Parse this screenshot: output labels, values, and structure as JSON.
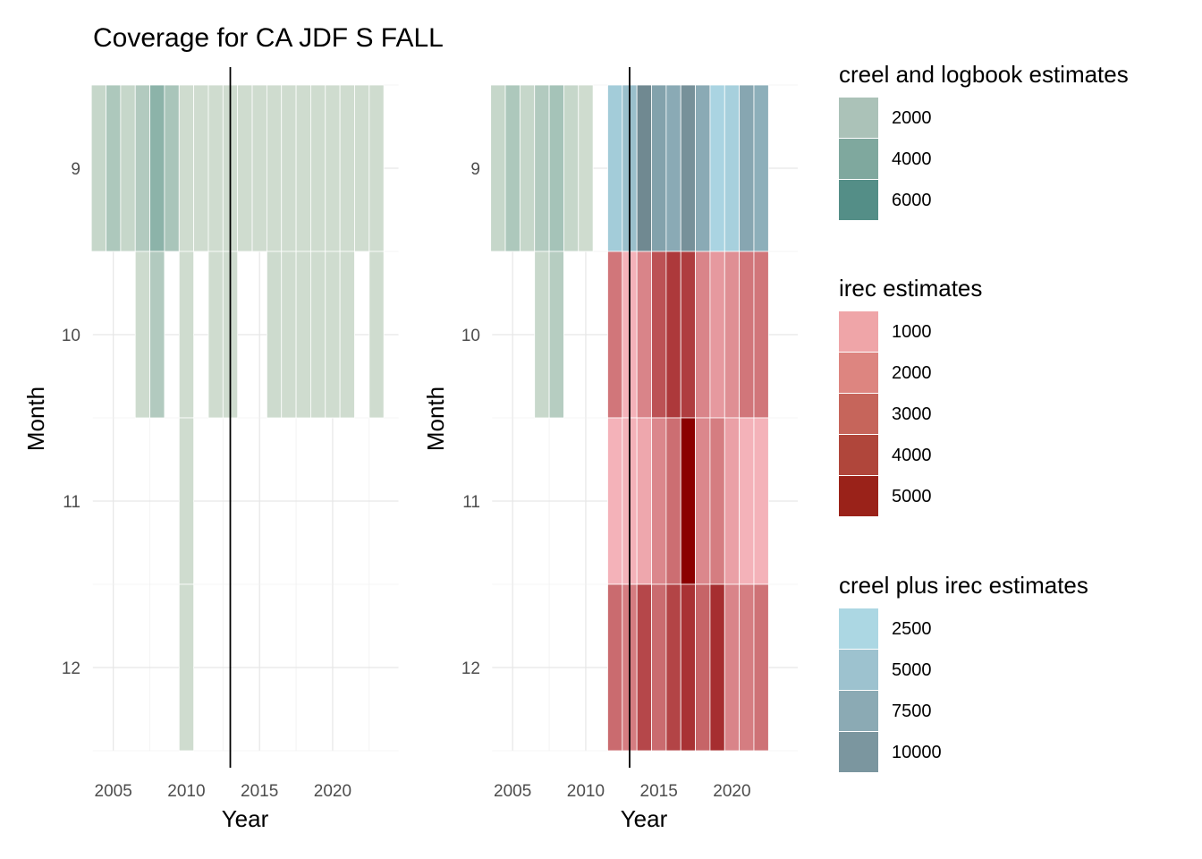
{
  "title": "Coverage for CA JDF S FALL",
  "chart_data": [
    {
      "type": "heatmap",
      "panel": "left",
      "xlabel": "Year",
      "ylabel": "Month",
      "xticks": [
        2005,
        2010,
        2015,
        2020
      ],
      "yticks": [
        9,
        10,
        11,
        12
      ],
      "xlim": [
        2003.6,
        2024.5
      ],
      "ylim": [
        8.5,
        12.5
      ],
      "vline_x": 2013,
      "grid": true,
      "cells": [
        {
          "year": 2004,
          "month": 9,
          "source": "creel and logbook estimates",
          "value": 1000
        },
        {
          "year": 2005,
          "month": 9,
          "source": "creel and logbook estimates",
          "value": 2200
        },
        {
          "year": 2006,
          "month": 9,
          "source": "creel and logbook estimates",
          "value": 1000
        },
        {
          "year": 2007,
          "month": 9,
          "source": "creel and logbook estimates",
          "value": 2000
        },
        {
          "year": 2008,
          "month": 9,
          "source": "creel and logbook estimates",
          "value": 3800
        },
        {
          "year": 2009,
          "month": 9,
          "source": "creel and logbook estimates",
          "value": 2400
        },
        {
          "year": 2010,
          "month": 9,
          "source": "creel and logbook estimates",
          "value": 600
        },
        {
          "year": 2011,
          "month": 9,
          "source": "creel and logbook estimates",
          "value": 600
        },
        {
          "year": 2012,
          "month": 9,
          "source": "creel and logbook estimates",
          "value": 600
        },
        {
          "year": 2013,
          "month": 9,
          "source": "creel and logbook estimates",
          "value": 600
        },
        {
          "year": 2014,
          "month": 9,
          "source": "creel and logbook estimates",
          "value": 600
        },
        {
          "year": 2015,
          "month": 9,
          "source": "creel and logbook estimates",
          "value": 600
        },
        {
          "year": 2016,
          "month": 9,
          "source": "creel and logbook estimates",
          "value": 600
        },
        {
          "year": 2017,
          "month": 9,
          "source": "creel and logbook estimates",
          "value": 600
        },
        {
          "year": 2018,
          "month": 9,
          "source": "creel and logbook estimates",
          "value": 600
        },
        {
          "year": 2019,
          "month": 9,
          "source": "creel and logbook estimates",
          "value": 600
        },
        {
          "year": 2020,
          "month": 9,
          "source": "creel and logbook estimates",
          "value": 600
        },
        {
          "year": 2021,
          "month": 9,
          "source": "creel and logbook estimates",
          "value": 600
        },
        {
          "year": 2022,
          "month": 9,
          "source": "creel and logbook estimates",
          "value": 600
        },
        {
          "year": 2023,
          "month": 9,
          "source": "creel and logbook estimates",
          "value": 600
        },
        {
          "year": 2007,
          "month": 10,
          "source": "creel and logbook estimates",
          "value": 700
        },
        {
          "year": 2008,
          "month": 10,
          "source": "creel and logbook estimates",
          "value": 2000
        },
        {
          "year": 2010,
          "month": 10,
          "source": "creel and logbook estimates",
          "value": 600
        },
        {
          "year": 2012,
          "month": 10,
          "source": "creel and logbook estimates",
          "value": 600
        },
        {
          "year": 2013,
          "month": 10,
          "source": "creel and logbook estimates",
          "value": 600
        },
        {
          "year": 2016,
          "month": 10,
          "source": "creel and logbook estimates",
          "value": 700
        },
        {
          "year": 2017,
          "month": 10,
          "source": "creel and logbook estimates",
          "value": 600
        },
        {
          "year": 2018,
          "month": 10,
          "source": "creel and logbook estimates",
          "value": 600
        },
        {
          "year": 2019,
          "month": 10,
          "source": "creel and logbook estimates",
          "value": 600
        },
        {
          "year": 2020,
          "month": 10,
          "source": "creel and logbook estimates",
          "value": 600
        },
        {
          "year": 2021,
          "month": 10,
          "source": "creel and logbook estimates",
          "value": 600
        },
        {
          "year": 2023,
          "month": 10,
          "source": "creel and logbook estimates",
          "value": 600
        },
        {
          "year": 2010,
          "month": 11,
          "source": "creel and logbook estimates",
          "value": 600
        },
        {
          "year": 2010,
          "month": 12,
          "source": "creel and logbook estimates",
          "value": 600
        }
      ]
    },
    {
      "type": "heatmap",
      "panel": "right",
      "xlabel": "Year",
      "ylabel": "Month",
      "xticks": [
        2005,
        2010,
        2015,
        2020
      ],
      "yticks": [
        9,
        10,
        11,
        12
      ],
      "xlim": [
        2003.6,
        2024.5
      ],
      "ylim": [
        8.5,
        12.5
      ],
      "vline_x": 2013,
      "grid": true,
      "cells": [
        {
          "year": 2004,
          "month": 9,
          "source": "creel and logbook estimates",
          "value": 1000
        },
        {
          "year": 2005,
          "month": 9,
          "source": "creel and logbook estimates",
          "value": 2200
        },
        {
          "year": 2006,
          "month": 9,
          "source": "creel and logbook estimates",
          "value": 1000
        },
        {
          "year": 2007,
          "month": 9,
          "source": "creel and logbook estimates",
          "value": 2000
        },
        {
          "year": 2008,
          "month": 9,
          "source": "creel and logbook estimates",
          "value": 2600
        },
        {
          "year": 2009,
          "month": 9,
          "source": "creel and logbook estimates",
          "value": 1000
        },
        {
          "year": 2010,
          "month": 9,
          "source": "creel and logbook estimates",
          "value": 600
        },
        {
          "year": 2012,
          "month": 9,
          "source": "creel plus irec estimates",
          "value": 3500
        },
        {
          "year": 2013,
          "month": 9,
          "source": "creel plus irec estimates",
          "value": 5000
        },
        {
          "year": 2014,
          "month": 9,
          "source": "creel plus irec estimates",
          "value": 11500
        },
        {
          "year": 2015,
          "month": 9,
          "source": "creel plus irec estimates",
          "value": 8500
        },
        {
          "year": 2016,
          "month": 9,
          "source": "creel plus irec estimates",
          "value": 7500
        },
        {
          "year": 2017,
          "month": 9,
          "source": "creel plus irec estimates",
          "value": 10500
        },
        {
          "year": 2018,
          "month": 9,
          "source": "creel plus irec estimates",
          "value": 7500
        },
        {
          "year": 2019,
          "month": 9,
          "source": "creel plus irec estimates",
          "value": 2500
        },
        {
          "year": 2020,
          "month": 9,
          "source": "creel plus irec estimates",
          "value": 3000
        },
        {
          "year": 2021,
          "month": 9,
          "source": "creel plus irec estimates",
          "value": 8000
        },
        {
          "year": 2022,
          "month": 9,
          "source": "creel plus irec estimates",
          "value": 7000
        },
        {
          "year": 2007,
          "month": 10,
          "source": "creel and logbook estimates",
          "value": 900
        },
        {
          "year": 2008,
          "month": 10,
          "source": "creel and logbook estimates",
          "value": 1800
        },
        {
          "year": 2012,
          "month": 10,
          "source": "irec estimates",
          "value": 2200
        },
        {
          "year": 2013,
          "month": 10,
          "source": "irec estimates",
          "value": 500
        },
        {
          "year": 2014,
          "month": 10,
          "source": "irec estimates",
          "value": 1800
        },
        {
          "year": 2015,
          "month": 10,
          "source": "irec estimates",
          "value": 3200
        },
        {
          "year": 2016,
          "month": 10,
          "source": "irec estimates",
          "value": 3900
        },
        {
          "year": 2017,
          "month": 10,
          "source": "irec estimates",
          "value": 3800
        },
        {
          "year": 2018,
          "month": 10,
          "source": "irec estimates",
          "value": 1800
        },
        {
          "year": 2019,
          "month": 10,
          "source": "irec estimates",
          "value": 1200
        },
        {
          "year": 2020,
          "month": 10,
          "source": "irec estimates",
          "value": 1500
        },
        {
          "year": 2021,
          "month": 10,
          "source": "irec estimates",
          "value": 2200
        },
        {
          "year": 2022,
          "month": 10,
          "source": "irec estimates",
          "value": 2200
        },
        {
          "year": 2012,
          "month": 11,
          "source": "irec estimates",
          "value": 500
        },
        {
          "year": 2013,
          "month": 11,
          "source": "irec estimates",
          "value": 500
        },
        {
          "year": 2014,
          "month": 11,
          "source": "irec estimates",
          "value": 800
        },
        {
          "year": 2015,
          "month": 11,
          "source": "irec estimates",
          "value": 1700
        },
        {
          "year": 2016,
          "month": 11,
          "source": "irec estimates",
          "value": 2400
        },
        {
          "year": 2017,
          "month": 11,
          "source": "irec estimates",
          "value": 5500
        },
        {
          "year": 2018,
          "month": 11,
          "source": "irec estimates",
          "value": 1700
        },
        {
          "year": 2019,
          "month": 11,
          "source": "irec estimates",
          "value": 2000
        },
        {
          "year": 2020,
          "month": 11,
          "source": "irec estimates",
          "value": 1000
        },
        {
          "year": 2021,
          "month": 11,
          "source": "irec estimates",
          "value": 500
        },
        {
          "year": 2022,
          "month": 11,
          "source": "irec estimates",
          "value": 500
        },
        {
          "year": 2012,
          "month": 12,
          "source": "irec estimates",
          "value": 2500
        },
        {
          "year": 2013,
          "month": 12,
          "source": "irec estimates",
          "value": 2000
        },
        {
          "year": 2014,
          "month": 12,
          "source": "irec estimates",
          "value": 3500
        },
        {
          "year": 2015,
          "month": 12,
          "source": "irec estimates",
          "value": 2500
        },
        {
          "year": 2016,
          "month": 12,
          "source": "irec estimates",
          "value": 3600
        },
        {
          "year": 2017,
          "month": 12,
          "source": "irec estimates",
          "value": 4100
        },
        {
          "year": 2018,
          "month": 12,
          "source": "irec estimates",
          "value": 2700
        },
        {
          "year": 2019,
          "month": 12,
          "source": "irec estimates",
          "value": 4200
        },
        {
          "year": 2020,
          "month": 12,
          "source": "irec estimates",
          "value": 1800
        },
        {
          "year": 2021,
          "month": 12,
          "source": "irec estimates",
          "value": 2000
        },
        {
          "year": 2022,
          "month": 12,
          "source": "irec estimates",
          "value": 2300
        }
      ]
    }
  ],
  "legends": [
    {
      "title": "creel and logbook estimates",
      "items": [
        {
          "label": "2000",
          "color": "#abc2b8"
        },
        {
          "label": "4000",
          "color": "#7fa89e"
        },
        {
          "label": "6000",
          "color": "#548e87"
        }
      ],
      "gradient": {
        "min": 0,
        "max": 7000,
        "low": "#dbe4d6",
        "high": "#4a8a84"
      }
    },
    {
      "title": "irec estimates",
      "items": [
        {
          "label": "1000",
          "color": "#efa5a8"
        },
        {
          "label": "2000",
          "color": "#dd8580"
        },
        {
          "label": "3000",
          "color": "#c6655b"
        },
        {
          "label": "4000",
          "color": "#b0463b"
        },
        {
          "label": "5000",
          "color": "#9a2219"
        }
      ],
      "gradient": {
        "min": 0,
        "max": 5500,
        "low": "#ffc4cb",
        "high": "#8b0000"
      }
    },
    {
      "title": "creel plus irec estimates",
      "items": [
        {
          "label": "2500",
          "color": "#acd7e3"
        },
        {
          "label": "5000",
          "color": "#9dc2cf"
        },
        {
          "label": "7500",
          "color": "#8baab4"
        },
        {
          "label": "10000",
          "color": "#7b969f"
        }
      ],
      "gradient": {
        "min": 2000,
        "max": 12000,
        "low": "#add8e6",
        "high": "#6d858d"
      }
    }
  ]
}
